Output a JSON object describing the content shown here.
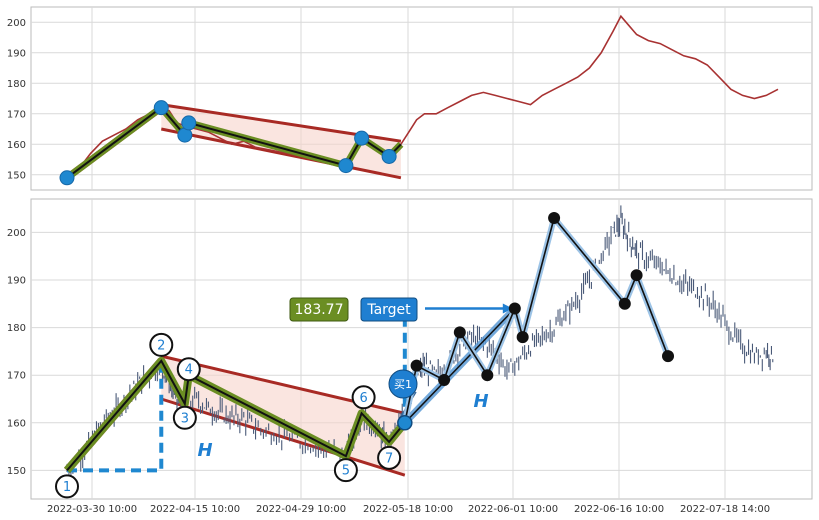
{
  "chart_data": [
    {
      "type": "line",
      "title": "",
      "ylim": [
        145,
        205
      ],
      "yticks": [
        150,
        160,
        170,
        180,
        190,
        200
      ],
      "price_series": {
        "color": "#a83232",
        "points": [
          [
            0,
            149
          ],
          [
            3,
            152
          ],
          [
            6,
            157
          ],
          [
            9,
            161
          ],
          [
            12,
            163
          ],
          [
            15,
            165
          ],
          [
            18,
            168
          ],
          [
            21,
            170
          ],
          [
            24,
            172
          ],
          [
            26,
            171
          ],
          [
            28,
            167
          ],
          [
            30,
            166
          ],
          [
            33,
            165
          ],
          [
            36,
            164
          ],
          [
            39,
            162
          ],
          [
            42,
            160
          ],
          [
            45,
            161
          ],
          [
            48,
            159
          ],
          [
            52,
            158
          ],
          [
            56,
            157
          ],
          [
            60,
            156
          ],
          [
            64,
            155
          ],
          [
            68,
            154
          ],
          [
            71,
            153
          ],
          [
            73,
            157
          ],
          [
            75,
            162
          ],
          [
            77,
            160
          ],
          [
            80,
            157
          ],
          [
            82,
            156
          ],
          [
            85,
            160
          ],
          [
            87,
            164
          ],
          [
            89,
            168
          ],
          [
            91,
            170
          ],
          [
            94,
            170
          ],
          [
            97,
            172
          ],
          [
            100,
            174
          ],
          [
            103,
            176
          ],
          [
            106,
            177
          ],
          [
            109,
            176
          ],
          [
            112,
            175
          ],
          [
            115,
            174
          ],
          [
            118,
            173
          ],
          [
            121,
            176
          ],
          [
            124,
            178
          ],
          [
            127,
            180
          ],
          [
            130,
            182
          ],
          [
            133,
            185
          ],
          [
            136,
            190
          ],
          [
            139,
            197
          ],
          [
            141,
            202
          ],
          [
            143,
            199
          ],
          [
            145,
            196
          ],
          [
            148,
            194
          ],
          [
            151,
            193
          ],
          [
            154,
            191
          ],
          [
            157,
            189
          ],
          [
            160,
            188
          ],
          [
            163,
            186
          ],
          [
            166,
            182
          ],
          [
            169,
            178
          ],
          [
            172,
            176
          ],
          [
            175,
            175
          ],
          [
            178,
            176
          ],
          [
            181,
            178
          ]
        ]
      },
      "zigzag": [
        [
          0,
          149
        ],
        [
          24,
          172
        ],
        [
          30,
          163
        ],
        [
          31,
          167
        ],
        [
          71,
          153
        ],
        [
          75,
          162
        ],
        [
          82,
          156
        ],
        [
          85,
          160
        ]
      ],
      "pivots": [
        [
          0,
          149
        ],
        [
          24,
          172
        ],
        [
          30,
          163
        ],
        [
          31,
          167
        ],
        [
          71,
          153
        ],
        [
          75,
          162
        ],
        [
          82,
          156
        ]
      ],
      "channel": {
        "upper": [
          [
            24,
            173
          ],
          [
            85,
            161
          ]
        ],
        "lower": [
          [
            24,
            165
          ],
          [
            85,
            149
          ]
        ]
      },
      "impulse": [
        [
          0,
          149
        ],
        [
          24,
          172
        ]
      ]
    },
    {
      "type": "candlestick",
      "ylim": [
        144,
        207
      ],
      "yticks": [
        150,
        160,
        170,
        180,
        190,
        200
      ],
      "xtick_labels": [
        "2022-03-30 10:00",
        "2022-04-15 10:00",
        "2022-04-29 10:00",
        "2022-05-18 10:00",
        "2022-06-01 10:00",
        "2022-06-16 10:00",
        "2022-07-18 14:00"
      ],
      "xticks": [
        0,
        24,
        48,
        72,
        96,
        120,
        144
      ],
      "close_series": [
        [
          0,
          150
        ],
        [
          3,
          153
        ],
        [
          6,
          156
        ],
        [
          9,
          160
        ],
        [
          12,
          162
        ],
        [
          15,
          165
        ],
        [
          18,
          168
        ],
        [
          21,
          170
        ],
        [
          24,
          172
        ],
        [
          26,
          169
        ],
        [
          28,
          165
        ],
        [
          30,
          164
        ],
        [
          33,
          165
        ],
        [
          36,
          163
        ],
        [
          39,
          162
        ],
        [
          42,
          161
        ],
        [
          45,
          161
        ],
        [
          48,
          159
        ],
        [
          52,
          158
        ],
        [
          56,
          157
        ],
        [
          60,
          156
        ],
        [
          64,
          155
        ],
        [
          68,
          154
        ],
        [
          71,
          153
        ],
        [
          73,
          157
        ],
        [
          75,
          162
        ],
        [
          77,
          160
        ],
        [
          80,
          157
        ],
        [
          82,
          156
        ],
        [
          85,
          160
        ],
        [
          87,
          164
        ],
        [
          89,
          170
        ],
        [
          91,
          172
        ],
        [
          94,
          170
        ],
        [
          97,
          172
        ],
        [
          100,
          176
        ],
        [
          103,
          178
        ],
        [
          106,
          177
        ],
        [
          109,
          175
        ],
        [
          112,
          171
        ],
        [
          115,
          173
        ],
        [
          118,
          176
        ],
        [
          121,
          178
        ],
        [
          124,
          180
        ],
        [
          127,
          183
        ],
        [
          130,
          186
        ],
        [
          133,
          190
        ],
        [
          136,
          195
        ],
        [
          139,
          200
        ],
        [
          141,
          202
        ],
        [
          143,
          199
        ],
        [
          145,
          196
        ],
        [
          148,
          194
        ],
        [
          151,
          193
        ],
        [
          154,
          191
        ],
        [
          157,
          189
        ],
        [
          160,
          188
        ],
        [
          163,
          186
        ],
        [
          166,
          183
        ],
        [
          169,
          179
        ],
        [
          172,
          176
        ],
        [
          175,
          174
        ],
        [
          178,
          175
        ],
        [
          180,
          174
        ]
      ],
      "zigzag_pivots": [
        [
          0,
          150,
          "1"
        ],
        [
          24,
          173,
          "2"
        ],
        [
          30,
          164,
          "3"
        ],
        [
          31,
          170,
          "4"
        ],
        [
          71,
          153,
          "5"
        ],
        [
          75,
          162,
          "6"
        ],
        [
          82,
          156,
          "7"
        ]
      ],
      "zigzag_path": [
        [
          0,
          150
        ],
        [
          24,
          173
        ],
        [
          30,
          164
        ],
        [
          31,
          170
        ],
        [
          71,
          153
        ],
        [
          75,
          162
        ],
        [
          82,
          156
        ],
        [
          86,
          160
        ]
      ],
      "black_path": [
        [
          86,
          160
        ],
        [
          89,
          172
        ],
        [
          96,
          169
        ],
        [
          100,
          179
        ],
        [
          107,
          170
        ],
        [
          114,
          184
        ],
        [
          116,
          178
        ],
        [
          124,
          203
        ],
        [
          142,
          185
        ],
        [
          145,
          191
        ],
        [
          153,
          174
        ]
      ],
      "black_points": [
        [
          89,
          172
        ],
        [
          96,
          169
        ],
        [
          100,
          179
        ],
        [
          107,
          170
        ],
        [
          114,
          184
        ],
        [
          116,
          178
        ],
        [
          124,
          203
        ],
        [
          142,
          185
        ],
        [
          145,
          191
        ],
        [
          153,
          174
        ]
      ],
      "blue_line": [
        [
          86,
          160
        ],
        [
          114,
          184
        ]
      ],
      "channel": {
        "upper": [
          [
            24,
            174
          ],
          [
            86,
            162
          ]
        ],
        "lower": [
          [
            24,
            165
          ],
          [
            86,
            149
          ]
        ]
      },
      "impulse": [
        [
          0,
          150
        ],
        [
          24,
          173
        ]
      ],
      "h_measure": {
        "base_y": 150,
        "top_y": 173,
        "x0": 0,
        "x1": 24
      },
      "target_line": {
        "x0": 86,
        "x1": 114,
        "y": 184
      },
      "annotations": {
        "price_label": "183.77",
        "target_label": "Target",
        "buy_label": "买1",
        "h_label": "H",
        "h_label_2": "H"
      }
    }
  ]
}
